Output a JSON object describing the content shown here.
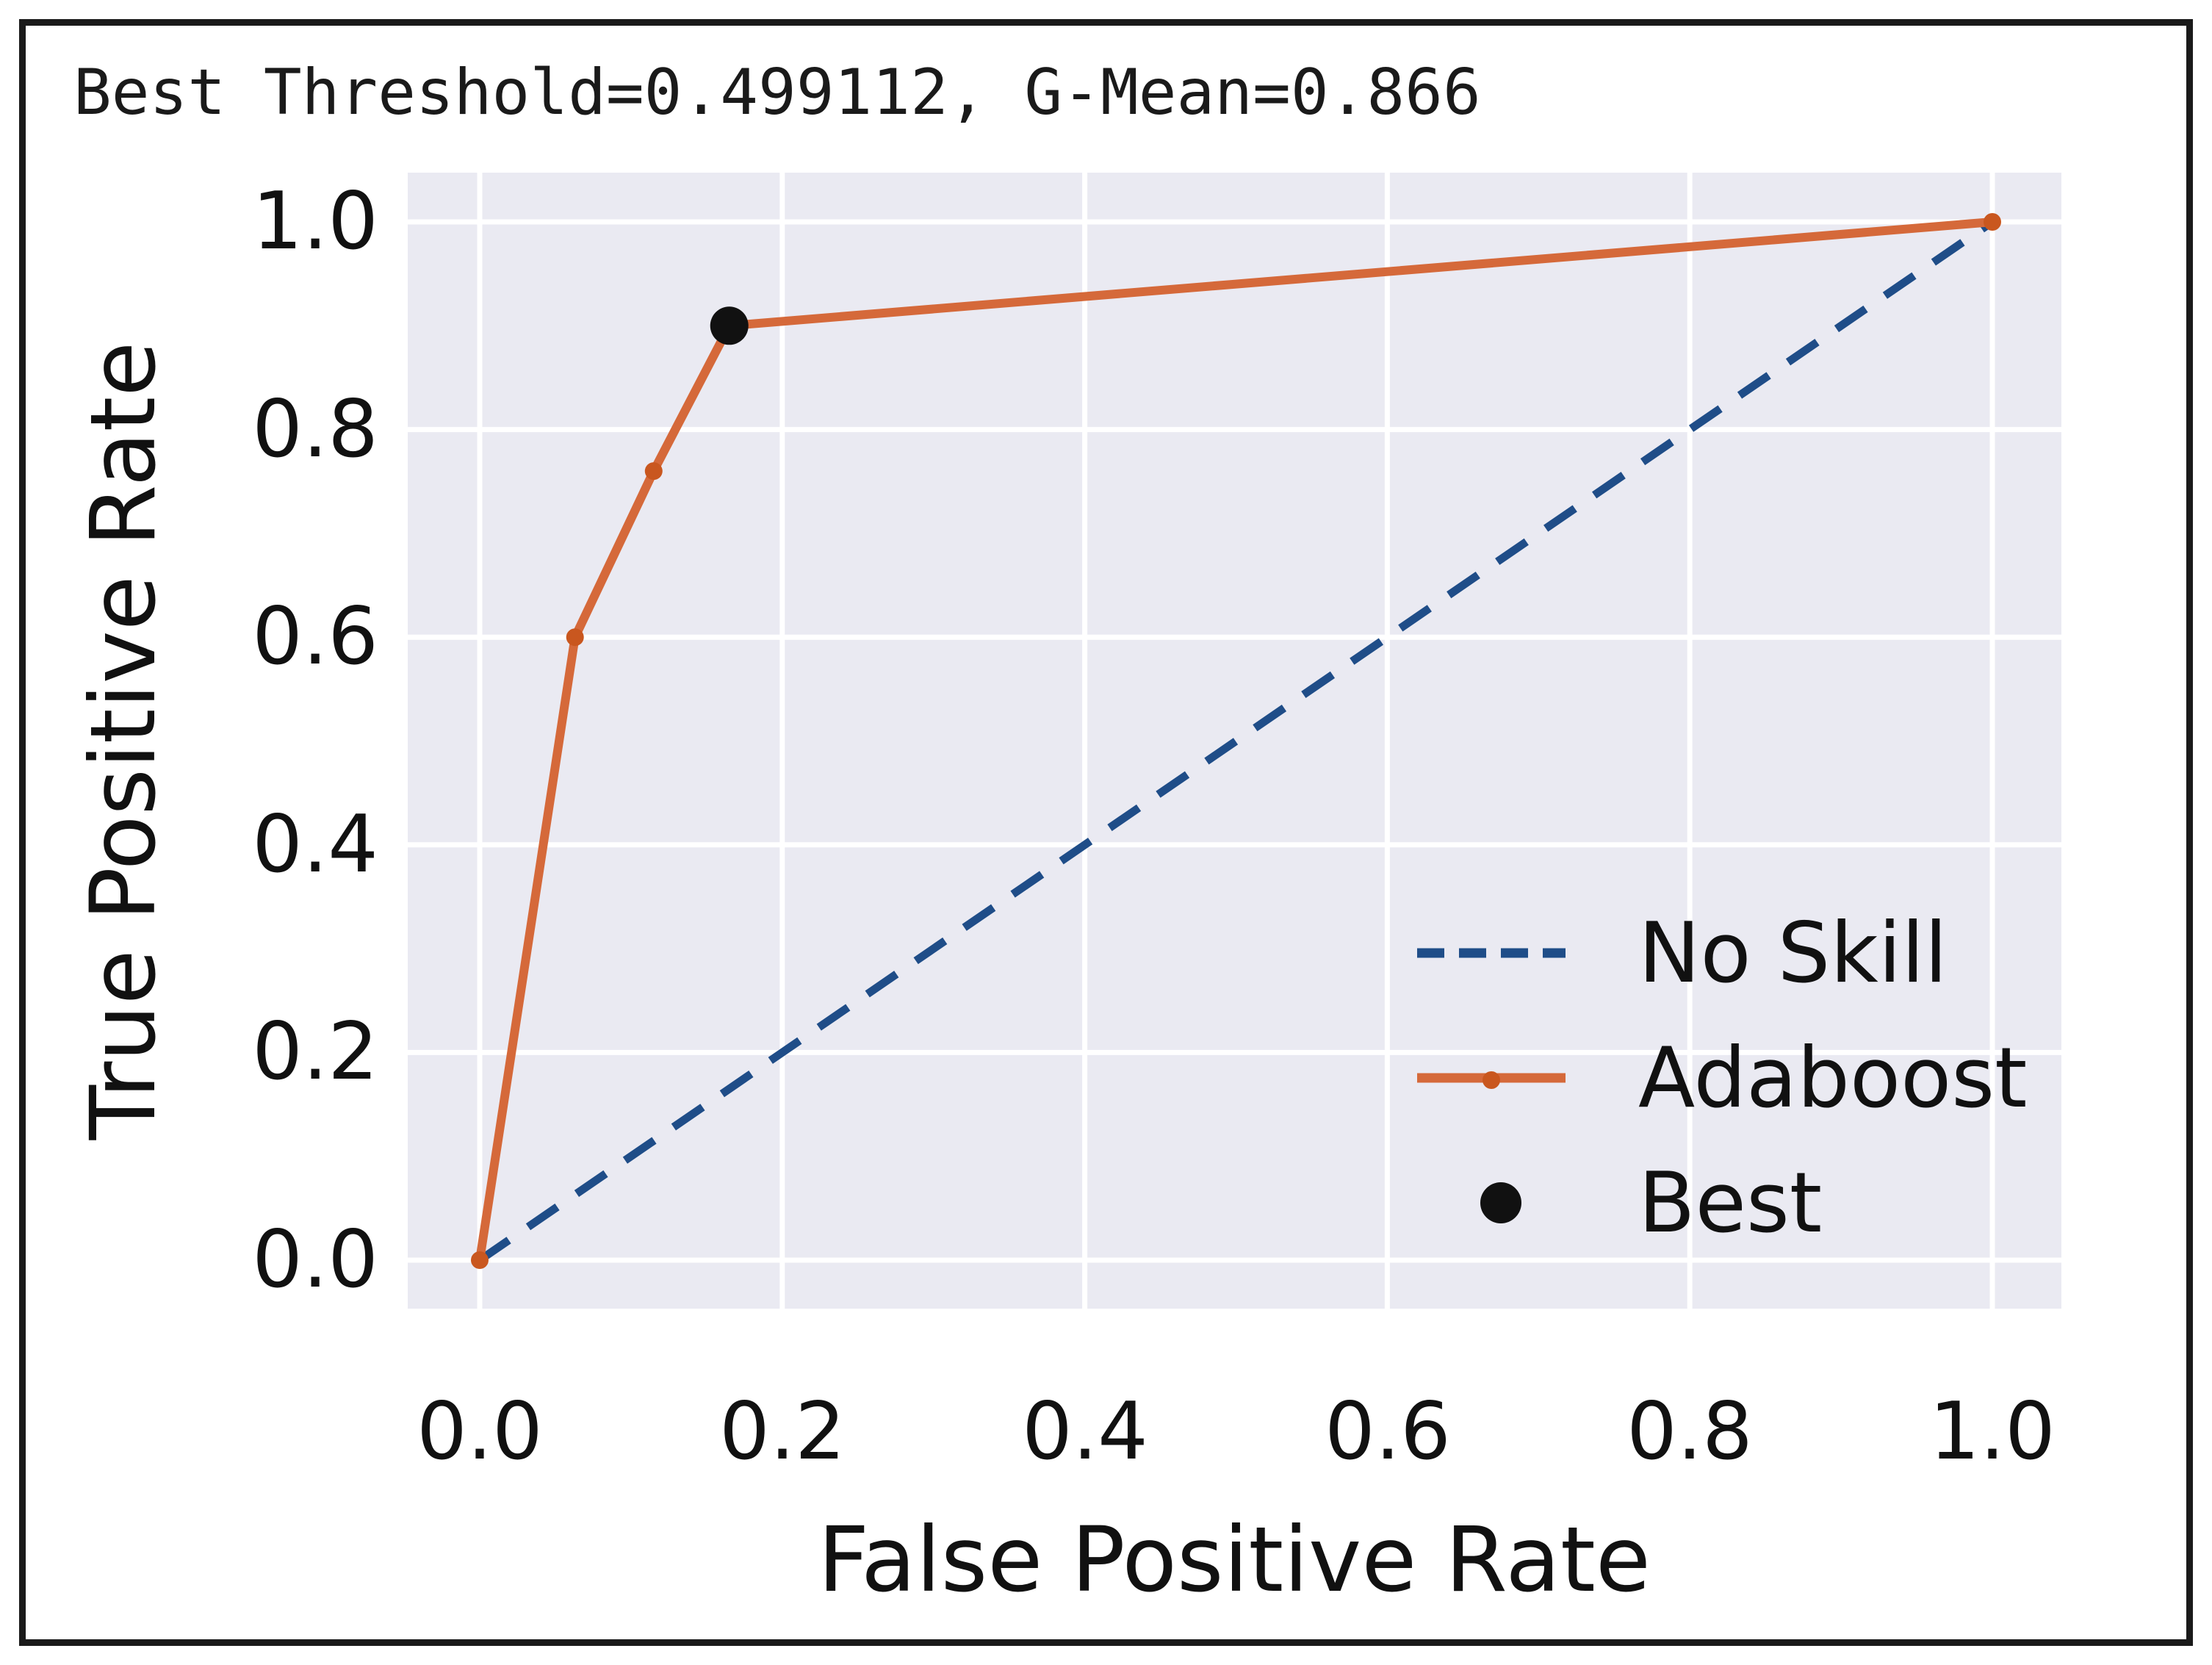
{
  "page": {
    "background": "#ffffff",
    "border_color": "#1a1a1a"
  },
  "chart_data": {
    "type": "line",
    "title": "Best Threshold=0.499112, G-Mean=0.866",
    "xlabel": "False Positive Rate",
    "ylabel": "True Positive Rate",
    "xlim": [
      0,
      1
    ],
    "ylim": [
      0,
      1
    ],
    "xticks": [
      "0.0",
      "0.2",
      "0.4",
      "0.6",
      "0.8",
      "1.0"
    ],
    "yticks": [
      "0.0",
      "0.2",
      "0.4",
      "0.6",
      "0.8",
      "1.0"
    ],
    "grid": true,
    "plot_background": "#eaeaf2",
    "gridline_color": "#ffffff",
    "legend_position": "lower right",
    "series": [
      {
        "name": "No Skill",
        "type": "line",
        "line_style": "dashed",
        "color": "#1f4d88",
        "x": [
          0.0,
          1.0
        ],
        "y": [
          0.0,
          1.0
        ]
      },
      {
        "name": "Adaboost",
        "type": "line",
        "line_style": "solid",
        "marker": "dot",
        "color": "#d5693a",
        "marker_color": "#c9571f",
        "x": [
          0.0,
          0.063,
          0.115,
          0.165,
          1.0
        ],
        "y": [
          0.0,
          0.6,
          0.76,
          0.9,
          1.0
        ]
      },
      {
        "name": "Best",
        "type": "scatter",
        "marker": "large-dot",
        "color": "#111111",
        "x": [
          0.165
        ],
        "y": [
          0.9
        ]
      }
    ]
  }
}
